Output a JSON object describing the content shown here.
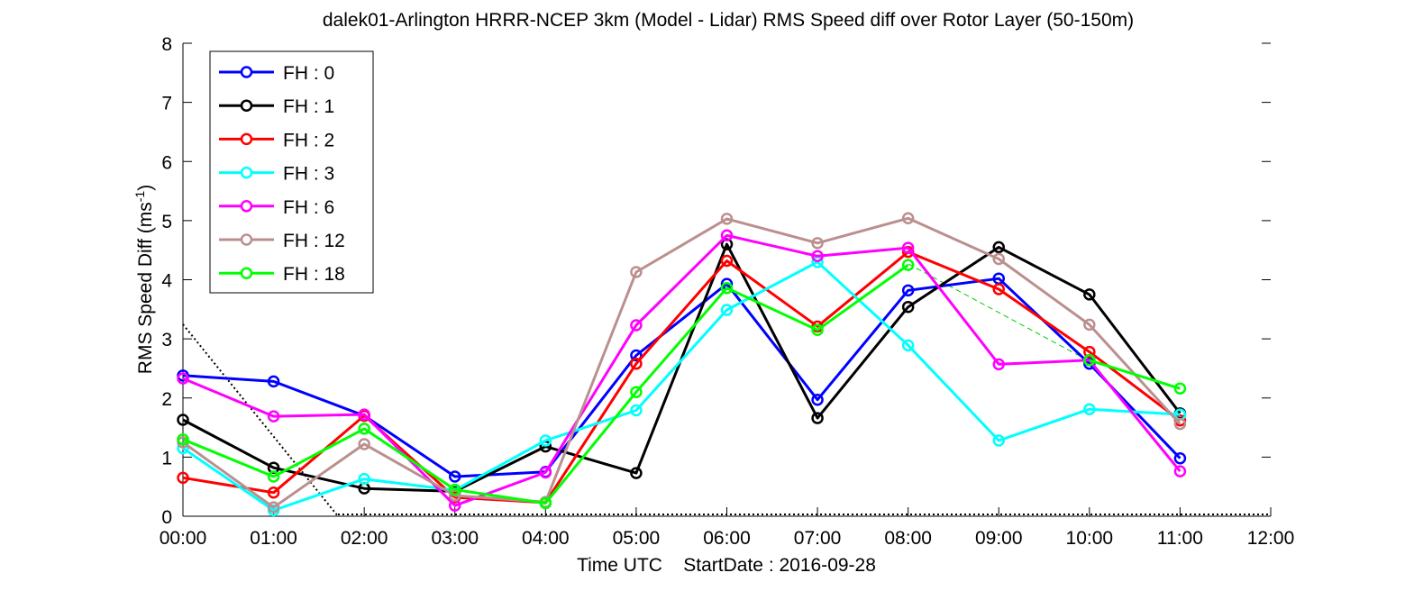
{
  "chart_data": {
    "type": "line",
    "title": "dalek01-Arlington HRRR-NCEP 3km (Model - Lidar) RMS Speed diff over Rotor Layer (50-150m)",
    "xlabel": "Time UTC    StartDate : 2016-09-28",
    "ylabel": {
      "text": "RMS Speed Diff (ms",
      "superscript": "-1",
      "suffix": ")"
    },
    "x_ticks": [
      "00:00",
      "01:00",
      "02:00",
      "03:00",
      "04:00",
      "05:00",
      "06:00",
      "07:00",
      "08:00",
      "09:00",
      "10:00",
      "11:00",
      "12:00"
    ],
    "y_ticks": [
      "0",
      "1",
      "2",
      "3",
      "4",
      "5",
      "6",
      "7",
      "8"
    ],
    "xlim": [
      0,
      12
    ],
    "ylim": [
      0,
      8
    ],
    "grid": false,
    "legend_position": "top-left",
    "x": [
      0,
      1,
      2,
      3,
      4,
      5,
      6,
      7,
      8,
      9,
      10,
      11
    ],
    "series": [
      {
        "name": "FH : 0",
        "color": "#0000ff",
        "values": [
          2.38,
          2.28,
          1.7,
          0.67,
          0.75,
          2.72,
          3.93,
          1.97,
          3.82,
          4.02,
          2.58,
          0.98
        ]
      },
      {
        "name": "FH : 1",
        "color": "#000000",
        "values": [
          1.63,
          0.82,
          0.47,
          0.42,
          1.18,
          0.73,
          4.6,
          1.66,
          3.54,
          4.55,
          3.75,
          1.74
        ]
      },
      {
        "name": "FH : 2",
        "color": "#ff0000",
        "values": [
          0.65,
          0.4,
          1.7,
          0.32,
          0.23,
          2.58,
          4.32,
          3.21,
          4.47,
          3.84,
          2.78,
          1.62
        ]
      },
      {
        "name": "FH : 3",
        "color": "#00ffff",
        "values": [
          1.15,
          0.1,
          0.63,
          0.44,
          1.28,
          1.79,
          3.49,
          4.3,
          2.89,
          1.28,
          1.81,
          1.72
        ]
      },
      {
        "name": "FH : 6",
        "color": "#ff00ff",
        "values": [
          2.33,
          1.69,
          1.72,
          0.18,
          0.74,
          3.23,
          4.75,
          4.4,
          4.54,
          2.57,
          2.64,
          0.76
        ]
      },
      {
        "name": "FH : 12",
        "color": "#bc8f8f",
        "values": [
          1.25,
          0.15,
          1.22,
          0.35,
          0.24,
          4.13,
          5.03,
          4.62,
          5.04,
          4.35,
          3.24,
          1.56
        ]
      },
      {
        "name": "FH : 18",
        "color": "#00ff00",
        "values": [
          1.3,
          0.67,
          1.48,
          0.45,
          0.22,
          2.1,
          3.86,
          3.15,
          4.25,
          null,
          2.64,
          2.16
        ]
      }
    ]
  }
}
